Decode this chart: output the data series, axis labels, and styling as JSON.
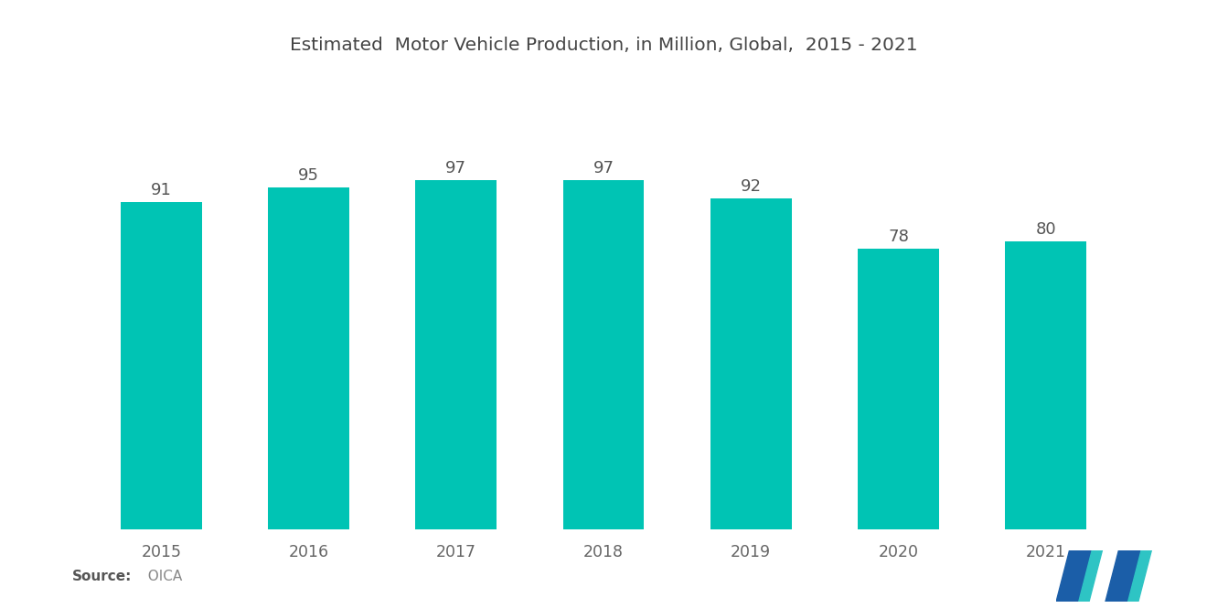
{
  "title": "Estimated  Motor Vehicle Production, in Million, Global,  2015 - 2021",
  "categories": [
    "2015",
    "2016",
    "2017",
    "2018",
    "2019",
    "2020",
    "2021"
  ],
  "values": [
    91,
    95,
    97,
    97,
    92,
    78,
    80
  ],
  "bar_color": "#00C4B4",
  "background_color": "#ffffff",
  "title_fontsize": 14.5,
  "label_fontsize": 12.5,
  "value_fontsize": 13,
  "source_label": "Source:",
  "source_value": "  OICA",
  "bar_width": 0.55,
  "ylim": [
    0,
    115
  ],
  "logo_colors": [
    "#2B6CB0",
    "#00C4B4"
  ]
}
